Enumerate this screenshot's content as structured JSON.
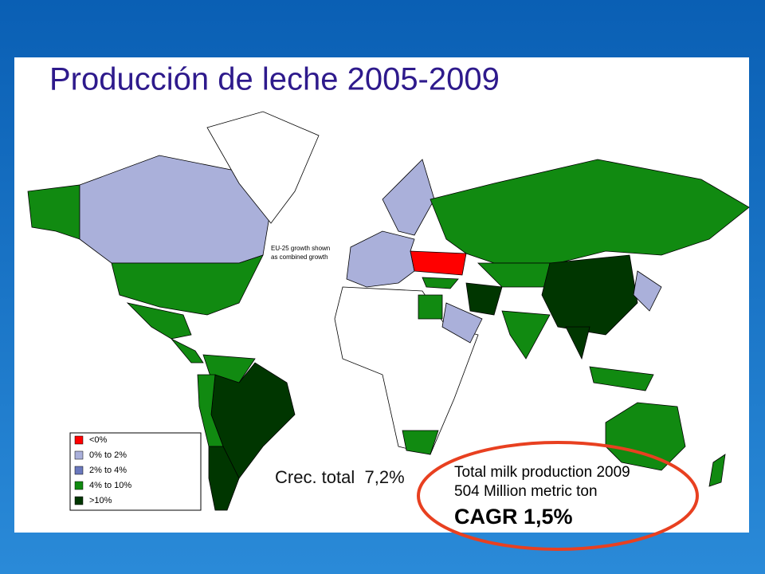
{
  "title": "Producción de leche 2005-2009",
  "map_note": [
    "EU-25 growth shown",
    "as combined growth"
  ],
  "legend": [
    {
      "label": "<0%",
      "color": "#ff0000"
    },
    {
      "label": "0% to 2%",
      "color": "#aab0da"
    },
    {
      "label": "2% to 4%",
      "color": "#6a78bd"
    },
    {
      "label": "4% to 10%",
      "color": "#118a11"
    },
    {
      "label": ">10%",
      "color": "#003600"
    }
  ],
  "annotations": {
    "total_growth": "Crec. total  7,2%",
    "callout": [
      "Total milk production 2009",
      "504 Million metric ton",
      "CAGR 1,5%"
    ]
  }
}
